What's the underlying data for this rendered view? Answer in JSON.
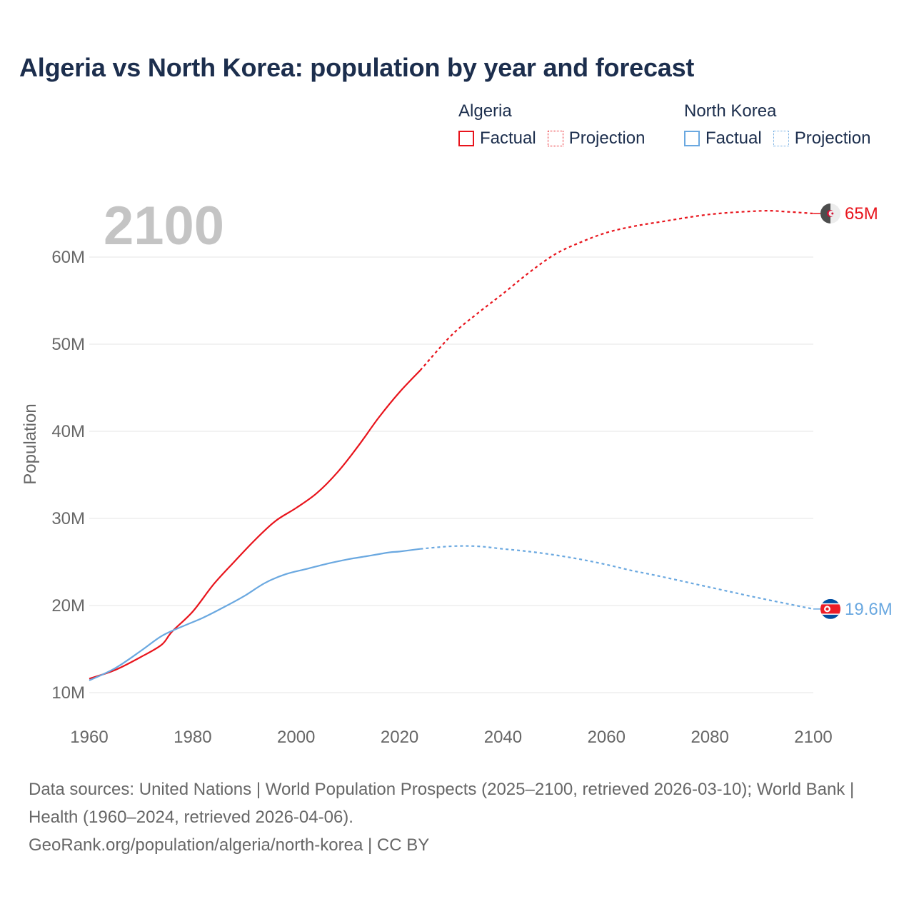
{
  "title": "Algeria vs North Korea: population by year and forecast",
  "legend": [
    {
      "group": "Algeria",
      "color": "#e8141c",
      "items": [
        "Factual",
        "Projection"
      ]
    },
    {
      "group": "North Korea",
      "color": "#6aa8e0",
      "items": [
        "Factual",
        "Projection"
      ]
    }
  ],
  "chart_data": {
    "type": "line",
    "year_label": "2100",
    "ylabel": "Population",
    "xlim": [
      1960,
      2100
    ],
    "ylim": [
      10,
      65
    ],
    "x_ticks": [
      "1960",
      "1980",
      "2000",
      "2020",
      "2040",
      "2060",
      "2080",
      "2100"
    ],
    "y_ticks": [
      {
        "value": 10,
        "label": "10M"
      },
      {
        "value": 20,
        "label": "20M"
      },
      {
        "value": 30,
        "label": "30M"
      },
      {
        "value": 40,
        "label": "40M"
      },
      {
        "value": 50,
        "label": "50M"
      },
      {
        "value": 60,
        "label": "60M"
      }
    ],
    "series": [
      {
        "name": "Algeria",
        "color": "#e8141c",
        "end_label": "65M",
        "flag_icon": "algeria-flag-icon",
        "factual": {
          "x": [
            1960,
            1965,
            1970,
            1974,
            1976,
            1980,
            1984,
            1988,
            1992,
            1996,
            2000,
            2004,
            2008,
            2012,
            2016,
            2020,
            2024
          ],
          "y": [
            11.6,
            12.6,
            14.1,
            15.5,
            17.0,
            19.3,
            22.4,
            25.0,
            27.5,
            29.7,
            31.2,
            32.9,
            35.3,
            38.3,
            41.6,
            44.5,
            47.0
          ]
        },
        "projection": {
          "x": [
            2024,
            2030,
            2035,
            2040,
            2045,
            2050,
            2055,
            2060,
            2065,
            2070,
            2080,
            2090,
            2095,
            2100
          ],
          "y": [
            47.0,
            51.0,
            53.5,
            55.8,
            58.2,
            60.3,
            61.7,
            62.8,
            63.5,
            64.0,
            64.9,
            65.3,
            65.2,
            65.0
          ]
        }
      },
      {
        "name": "North Korea",
        "color": "#6aa8e0",
        "end_label": "19.6M",
        "flag_icon": "north-korea-flag-icon",
        "factual": {
          "x": [
            1960,
            1965,
            1970,
            1974,
            1978,
            1982,
            1986,
            1990,
            1994,
            1998,
            2002,
            2006,
            2010,
            2014,
            2018,
            2020,
            2024
          ],
          "y": [
            11.4,
            12.8,
            14.8,
            16.5,
            17.6,
            18.6,
            19.8,
            21.1,
            22.6,
            23.6,
            24.2,
            24.8,
            25.3,
            25.7,
            26.1,
            26.2,
            26.5
          ]
        },
        "projection": {
          "x": [
            2024,
            2030,
            2035,
            2040,
            2045,
            2050,
            2055,
            2060,
            2065,
            2070,
            2080,
            2090,
            2100
          ],
          "y": [
            26.5,
            26.8,
            26.8,
            26.5,
            26.2,
            25.8,
            25.3,
            24.7,
            24.0,
            23.4,
            22.1,
            20.8,
            19.6
          ]
        }
      }
    ]
  },
  "footer": {
    "sources": "Data sources: United Nations | World Population Prospects (2025–2100, retrieved 2026-03-10); World Bank | Health (1960–2024, retrieved 2026-04-06).",
    "credit": "GeoRank.org/population/algeria/north-korea | CC BY"
  }
}
